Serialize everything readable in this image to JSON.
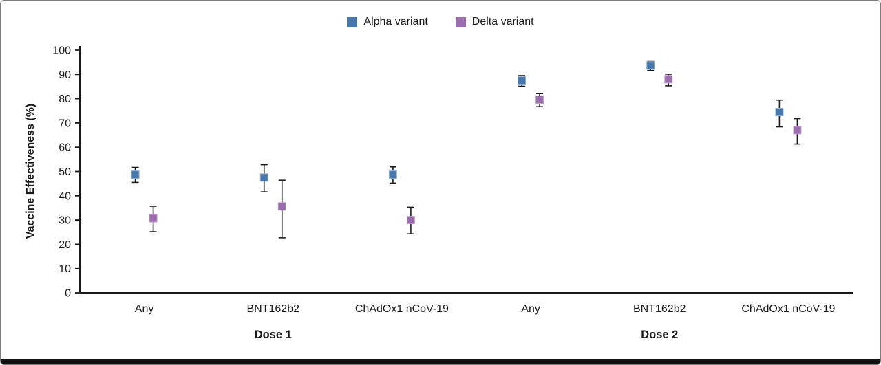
{
  "figure": {
    "border_color": "#7d7d7d",
    "bottom_bar_color": "#111111",
    "background": "#ffffff"
  },
  "legend": {
    "position": "top-center",
    "items": [
      {
        "label": "Alpha variant",
        "color": "#4678ae"
      },
      {
        "label": "Delta variant",
        "color": "#9b6dae"
      }
    ]
  },
  "chart_data": {
    "type": "scatter",
    "subtype": "point-estimates-with-error-bars",
    "title": "",
    "xlabel": "",
    "ylabel": "Vaccine Effectiveness (%)",
    "ylim": [
      0,
      100
    ],
    "yticks": [
      0,
      10,
      20,
      30,
      40,
      50,
      60,
      70,
      80,
      90,
      100
    ],
    "grid": false,
    "legend_position": "top-center",
    "axis_color": "#1a1a1a",
    "error_bar_color": "#1a1a1a",
    "groups": [
      {
        "label": "Dose 1"
      },
      {
        "label": "Dose 2"
      }
    ],
    "categories": [
      {
        "label": "Any",
        "group": "Dose 1"
      },
      {
        "label": "BNT162b2",
        "group": "Dose 1"
      },
      {
        "label": "ChAdOx1 nCoV-19",
        "group": "Dose 1"
      },
      {
        "label": "Any",
        "group": "Dose 2"
      },
      {
        "label": "BNT162b2",
        "group": "Dose 2"
      },
      {
        "label": "ChAdOx1 nCoV-19",
        "group": "Dose 2"
      }
    ],
    "series": [
      {
        "name": "Alpha variant",
        "color": "#4678ae",
        "edge": "#8fafd2",
        "values": [
          48.7,
          47.5,
          48.7,
          87.5,
          93.7,
          74.5
        ],
        "ci_low": [
          45.5,
          41.6,
          45.2,
          85.1,
          91.6,
          68.4
        ],
        "ci_high": [
          51.7,
          52.8,
          51.9,
          89.5,
          95.3,
          79.4
        ]
      },
      {
        "name": "Delta variant",
        "color": "#9b6dae",
        "edge": "#c1a0cc",
        "values": [
          30.7,
          35.6,
          30.0,
          79.6,
          88.0,
          67.0
        ],
        "ci_low": [
          25.2,
          22.7,
          24.3,
          76.7,
          85.3,
          61.3
        ],
        "ci_high": [
          35.7,
          46.4,
          35.3,
          82.1,
          90.1,
          71.8
        ]
      }
    ]
  }
}
